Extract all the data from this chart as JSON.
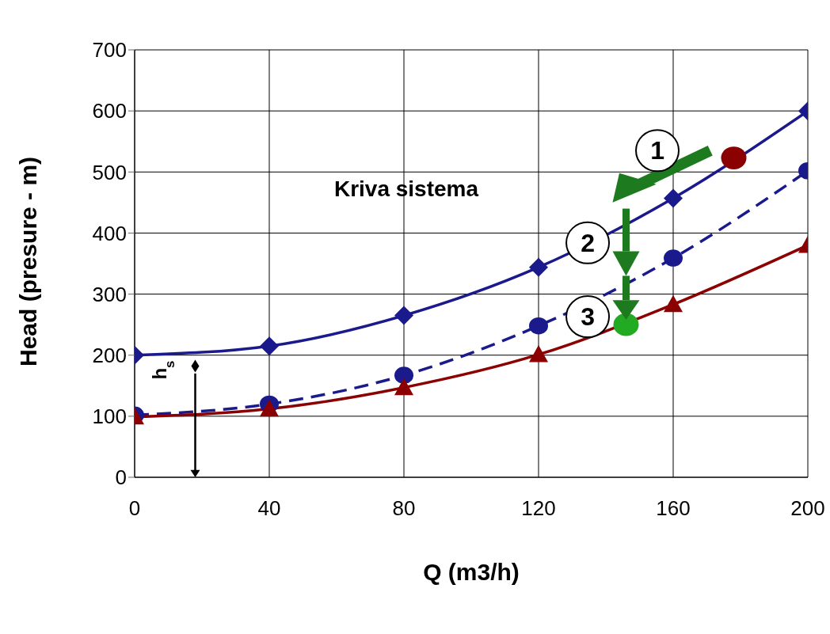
{
  "chart_data": {
    "type": "line",
    "xlabel": "Q (m3/h)",
    "ylabel": "Head (presure - m)",
    "xlim": [
      0,
      200
    ],
    "xticks": [
      0,
      40,
      80,
      120,
      160,
      200
    ],
    "ylim": [
      0,
      700
    ],
    "yticks": [
      0,
      100,
      200,
      300,
      400,
      500,
      600,
      700
    ],
    "grid": true,
    "annotations": [
      "Kriva sistema",
      "1",
      "2",
      "3",
      "h$_{s}$"
    ],
    "series": [
      {
        "color": "#1a1a8c",
        "marker": "diamond",
        "line_style": "solid",
        "x": [
          0,
          40,
          80,
          120,
          160,
          200
        ],
        "values": [
          200,
          215,
          265,
          344,
          457,
          600
        ]
      },
      {
        "color": "#1a1a8c",
        "marker": "circle",
        "line_style": "dashed",
        "x": [
          0,
          40,
          80,
          120,
          160,
          200
        ],
        "values": [
          102,
          120,
          167,
          248,
          359,
          502
        ]
      },
      {
        "color": "#8b0000",
        "marker": "triangle",
        "line_style": "solid",
        "x": [
          0,
          40,
          80,
          120,
          160,
          200
        ],
        "values": [
          99,
          112,
          147,
          201,
          283,
          380
        ]
      },
      {
        "type": "scatter",
        "color": "#8b0000",
        "marker": "circle",
        "x": [
          178
        ],
        "values": [
          523
        ]
      },
      {
        "type": "scatter",
        "color": "#22aa22",
        "marker": "circle",
        "x": [
          146
        ],
        "values": [
          250
        ]
      }
    ]
  }
}
